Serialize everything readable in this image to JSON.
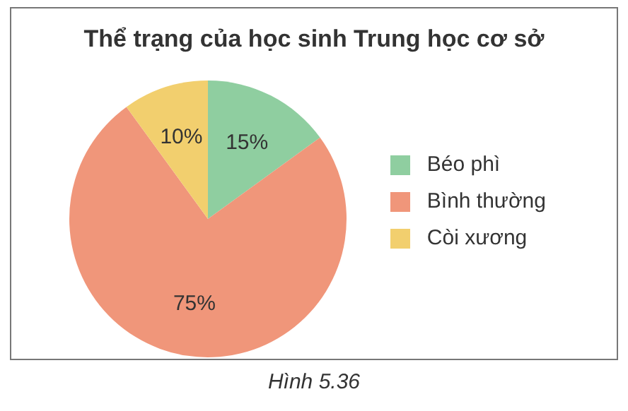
{
  "chart_data": {
    "type": "pie",
    "title": "Thể trạng của học sinh Trung học cơ sở",
    "categories": [
      "Béo phì",
      "Bình thường",
      "Còi xương"
    ],
    "values": [
      15,
      75,
      10
    ],
    "value_labels": [
      "15%",
      "75%",
      "10%"
    ],
    "colors": [
      "#8fcea0",
      "#f0967a",
      "#f2cf6e"
    ],
    "legend": "right",
    "annotations": [
      "Hình 5.36"
    ]
  }
}
